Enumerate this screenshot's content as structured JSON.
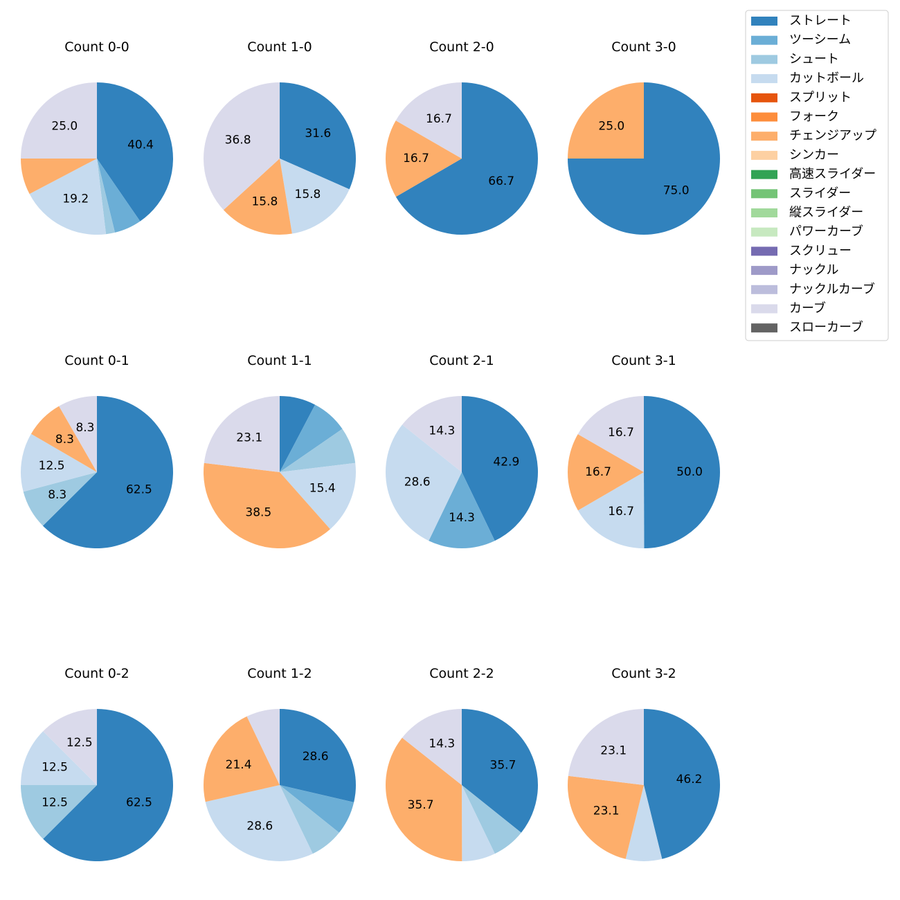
{
  "chart_data": {
    "type": "pie",
    "legend": {
      "placement": "top-right",
      "entries": [
        {
          "name": "ストレート",
          "color": "#3182bd"
        },
        {
          "name": "ツーシーム",
          "color": "#6baed6"
        },
        {
          "name": "シュート",
          "color": "#9ecae1"
        },
        {
          "name": "カットボール",
          "color": "#c6dbef"
        },
        {
          "name": "スプリット",
          "color": "#e6550d"
        },
        {
          "name": "フォーク",
          "color": "#fd8d3c"
        },
        {
          "name": "チェンジアップ",
          "color": "#fdae6b"
        },
        {
          "name": "シンカー",
          "color": "#fdd0a2"
        },
        {
          "name": "高速スライダー",
          "color": "#31a354"
        },
        {
          "name": "スライダー",
          "color": "#74c476"
        },
        {
          "name": "縦スライダー",
          "color": "#a1d99b"
        },
        {
          "name": "パワーカーブ",
          "color": "#c7e9c0"
        },
        {
          "name": "スクリュー",
          "color": "#756bb1"
        },
        {
          "name": "ナックル",
          "color": "#9e9ac8"
        },
        {
          "name": "ナックルカーブ",
          "color": "#bcbddc"
        },
        {
          "name": "カーブ",
          "color": "#dadaeb"
        },
        {
          "name": "スローカーブ",
          "color": "#636363"
        }
      ]
    },
    "pies": [
      {
        "title": "Count 0-0",
        "slices": [
          {
            "type": "ストレート",
            "value": 40.4,
            "label": "40.4"
          },
          {
            "type": "ツーシーム",
            "value": 5.8,
            "label": ""
          },
          {
            "type": "シュート",
            "value": 1.9,
            "label": ""
          },
          {
            "type": "カットボール",
            "value": 19.2,
            "label": "19.2"
          },
          {
            "type": "チェンジアップ",
            "value": 7.7,
            "label": ""
          },
          {
            "type": "カーブ",
            "value": 25.0,
            "label": "25.0"
          }
        ]
      },
      {
        "title": "Count 1-0",
        "slices": [
          {
            "type": "ストレート",
            "value": 31.6,
            "label": "31.6"
          },
          {
            "type": "カットボール",
            "value": 15.8,
            "label": "15.8"
          },
          {
            "type": "チェンジアップ",
            "value": 15.8,
            "label": "15.8"
          },
          {
            "type": "カーブ",
            "value": 36.8,
            "label": "36.8"
          }
        ]
      },
      {
        "title": "Count 2-0",
        "slices": [
          {
            "type": "ストレート",
            "value": 66.7,
            "label": "66.7"
          },
          {
            "type": "チェンジアップ",
            "value": 16.7,
            "label": "16.7"
          },
          {
            "type": "カーブ",
            "value": 16.7,
            "label": "16.7"
          }
        ]
      },
      {
        "title": "Count 3-0",
        "slices": [
          {
            "type": "ストレート",
            "value": 75.0,
            "label": "75.0"
          },
          {
            "type": "チェンジアップ",
            "value": 25.0,
            "label": "25.0"
          }
        ]
      },
      {
        "title": "Count 0-1",
        "slices": [
          {
            "type": "ストレート",
            "value": 62.5,
            "label": "62.5"
          },
          {
            "type": "シュート",
            "value": 8.3,
            "label": "8.3"
          },
          {
            "type": "カットボール",
            "value": 12.5,
            "label": "12.5"
          },
          {
            "type": "チェンジアップ",
            "value": 8.3,
            "label": "8.3"
          },
          {
            "type": "カーブ",
            "value": 8.3,
            "label": "8.3"
          }
        ]
      },
      {
        "title": "Count 1-1",
        "slices": [
          {
            "type": "ストレート",
            "value": 7.7,
            "label": ""
          },
          {
            "type": "ツーシーム",
            "value": 7.7,
            "label": ""
          },
          {
            "type": "シュート",
            "value": 7.7,
            "label": ""
          },
          {
            "type": "カットボール",
            "value": 15.4,
            "label": "15.4"
          },
          {
            "type": "チェンジアップ",
            "value": 38.5,
            "label": "38.5"
          },
          {
            "type": "カーブ",
            "value": 23.1,
            "label": "23.1"
          }
        ]
      },
      {
        "title": "Count 2-1",
        "slices": [
          {
            "type": "ストレート",
            "value": 42.9,
            "label": "42.9"
          },
          {
            "type": "ツーシーム",
            "value": 14.3,
            "label": "14.3"
          },
          {
            "type": "カットボール",
            "value": 28.6,
            "label": "28.6"
          },
          {
            "type": "カーブ",
            "value": 14.3,
            "label": "14.3"
          }
        ]
      },
      {
        "title": "Count 3-1",
        "slices": [
          {
            "type": "ストレート",
            "value": 50.0,
            "label": "50.0"
          },
          {
            "type": "カットボール",
            "value": 16.7,
            "label": "16.7"
          },
          {
            "type": "チェンジアップ",
            "value": 16.7,
            "label": "16.7"
          },
          {
            "type": "カーブ",
            "value": 16.7,
            "label": "16.7"
          }
        ]
      },
      {
        "title": "Count 0-2",
        "slices": [
          {
            "type": "ストレート",
            "value": 62.5,
            "label": "62.5"
          },
          {
            "type": "シュート",
            "value": 12.5,
            "label": "12.5"
          },
          {
            "type": "カットボール",
            "value": 12.5,
            "label": "12.5"
          },
          {
            "type": "カーブ",
            "value": 12.5,
            "label": "12.5"
          }
        ]
      },
      {
        "title": "Count 1-2",
        "slices": [
          {
            "type": "ストレート",
            "value": 28.6,
            "label": "28.6"
          },
          {
            "type": "ツーシーム",
            "value": 7.1,
            "label": ""
          },
          {
            "type": "シュート",
            "value": 7.1,
            "label": ""
          },
          {
            "type": "カットボール",
            "value": 28.6,
            "label": "28.6"
          },
          {
            "type": "チェンジアップ",
            "value": 21.4,
            "label": "21.4"
          },
          {
            "type": "カーブ",
            "value": 7.1,
            "label": ""
          }
        ]
      },
      {
        "title": "Count 2-2",
        "slices": [
          {
            "type": "ストレート",
            "value": 35.7,
            "label": "35.7"
          },
          {
            "type": "シュート",
            "value": 7.1,
            "label": ""
          },
          {
            "type": "カットボール",
            "value": 7.1,
            "label": ""
          },
          {
            "type": "チェンジアップ",
            "value": 35.7,
            "label": "35.7"
          },
          {
            "type": "カーブ",
            "value": 14.3,
            "label": "14.3"
          }
        ]
      },
      {
        "title": "Count 3-2",
        "slices": [
          {
            "type": "ストレート",
            "value": 46.2,
            "label": "46.2"
          },
          {
            "type": "カットボール",
            "value": 7.7,
            "label": ""
          },
          {
            "type": "チェンジアップ",
            "value": 23.1,
            "label": "23.1"
          },
          {
            "type": "カーブ",
            "value": 23.1,
            "label": "23.1"
          }
        ]
      }
    ]
  }
}
